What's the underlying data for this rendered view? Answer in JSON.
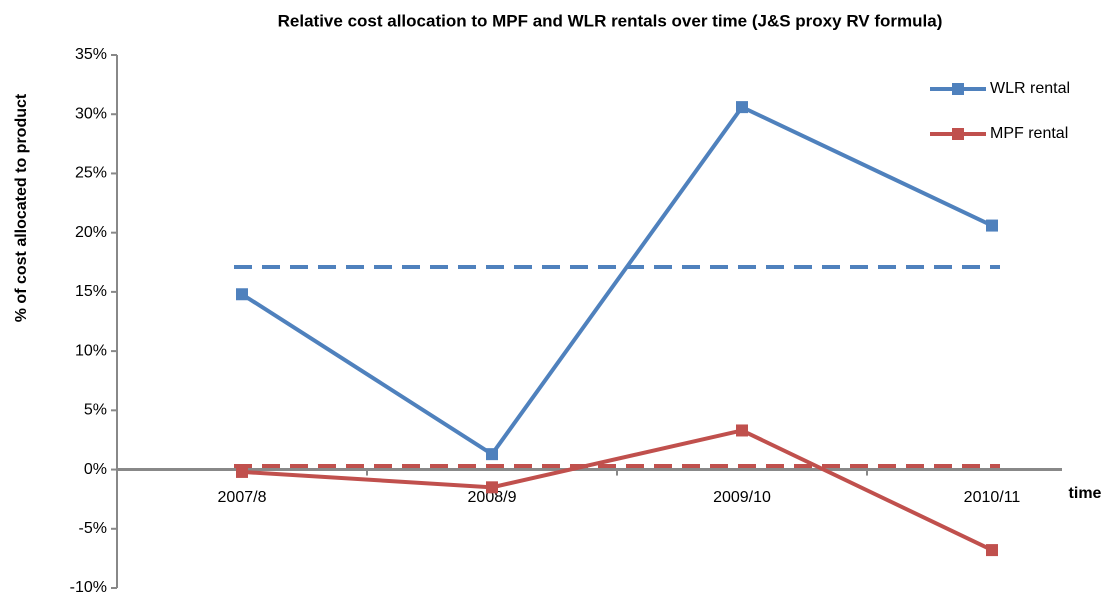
{
  "chart_data": {
    "type": "line",
    "title": "Relative cost allocation to MPF and WLR rentals over time (J&S proxy RV formula)",
    "ylabel": "% of cost  allocated to product",
    "xlabel": "time",
    "categories": [
      "2007/8",
      "2008/9",
      "2009/10",
      "2010/11"
    ],
    "series": [
      {
        "name": "WLR rental",
        "color": "#4f81bd",
        "values": [
          14.8,
          1.3,
          30.6,
          20.6
        ]
      },
      {
        "name": "MPF rental",
        "color": "#c0504d",
        "values": [
          -0.2,
          -1.5,
          3.3,
          -6.8
        ]
      }
    ],
    "reference_lines": [
      {
        "value": 17.1,
        "color": "#4f81bd"
      },
      {
        "value": 0.3,
        "color": "#c0504d"
      }
    ],
    "ylim": [
      -10,
      35
    ],
    "yticks": [
      {
        "value": -10,
        "label": "-10%"
      },
      {
        "value": -5,
        "label": "-5%"
      },
      {
        "value": 0,
        "label": "0%"
      },
      {
        "value": 5,
        "label": "5%"
      },
      {
        "value": 10,
        "label": "10%"
      },
      {
        "value": 15,
        "label": "15%"
      },
      {
        "value": 20,
        "label": "20%"
      },
      {
        "value": 25,
        "label": "25%"
      },
      {
        "value": 30,
        "label": "30%"
      },
      {
        "value": 35,
        "label": "35%"
      }
    ],
    "grid": false,
    "legend": "upper right"
  }
}
